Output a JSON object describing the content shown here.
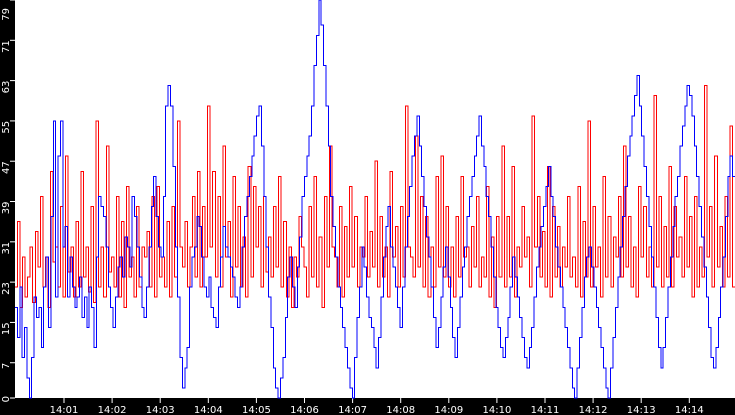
{
  "chart_data": {
    "type": "line",
    "title": "",
    "xlabel": "",
    "ylabel": "",
    "ylim": [
      0,
      79
    ],
    "xlim": [
      "14:00",
      "14:15"
    ],
    "grid": false,
    "legend": null,
    "background": "#ffffff",
    "frame_color": "#000000",
    "y_ticks": [
      0,
      7,
      15,
      23,
      31,
      39,
      47,
      55,
      63,
      71,
      79
    ],
    "x_ticks": [
      "14:01",
      "14:02",
      "14:03",
      "14:04",
      "14:05",
      "14:06",
      "14:07",
      "14:08",
      "14:09",
      "14:10",
      "14:11",
      "14:12",
      "14:13",
      "14:14"
    ],
    "series": [
      {
        "name": "red",
        "color": "#ff0000",
        "values": [
          22,
          35,
          18,
          28,
          20,
          24,
          30,
          19,
          33,
          26,
          40,
          22,
          28,
          18,
          45,
          27,
          30,
          22,
          38,
          20,
          48,
          25,
          30,
          20,
          35,
          22,
          45,
          24,
          30,
          21,
          38,
          19,
          55,
          22,
          30,
          20,
          50,
          25,
          28,
          22,
          40,
          20,
          35,
          18,
          42,
          24,
          28,
          20,
          38,
          22,
          30,
          28,
          33,
          22,
          40,
          20,
          42,
          24,
          28,
          22,
          35,
          20,
          38,
          24,
          55,
          30,
          26,
          35,
          22,
          30,
          40,
          24,
          45,
          22,
          38,
          28,
          58,
          30,
          45,
          24,
          40,
          22,
          50,
          28,
          35,
          20,
          44,
          26,
          38,
          22,
          32,
          20,
          46,
          24,
          42,
          30,
          38,
          22,
          40,
          25,
          32,
          24,
          38,
          26,
          44,
          22,
          35,
          20,
          30,
          18,
          28,
          24,
          36,
          30,
          26,
          20,
          38,
          24,
          44,
          22,
          32,
          18,
          40,
          26,
          50,
          30,
          28,
          22,
          38,
          20,
          34,
          24,
          42,
          26,
          36,
          22,
          30,
          28,
          40,
          24,
          33,
          26,
          47,
          22,
          36,
          24,
          30,
          20,
          45,
          28,
          34,
          22,
          38,
          24,
          58,
          30,
          28,
          24,
          52,
          26,
          40,
          22,
          36,
          20,
          30,
          22,
          44,
          26,
          48,
          24,
          38,
          22,
          30,
          20,
          36,
          24,
          44,
          28,
          30,
          22,
          34,
          26,
          40,
          22,
          28,
          24,
          42,
          20,
          32,
          18,
          36,
          24,
          50,
          22,
          36,
          24,
          46,
          20,
          30,
          26,
          38,
          28,
          32,
          22,
          56,
          30,
          40,
          24,
          33,
          22,
          46,
          20,
          38,
          24,
          34,
          22,
          30,
          26,
          40,
          24,
          28,
          22,
          42,
          20,
          35,
          24,
          55,
          22,
          38,
          26,
          30,
          20,
          44,
          24,
          36,
          22,
          32,
          28,
          40,
          24,
          50,
          26,
          36,
          22,
          30,
          20,
          42,
          28,
          38,
          24,
          30,
          22,
          60,
          26,
          40,
          22,
          34,
          24,
          46,
          22,
          38,
          28,
          32,
          24,
          44,
          26,
          36,
          20,
          40,
          22,
          30,
          24,
          62,
          28,
          38,
          22,
          48,
          26,
          34,
          22,
          40,
          24,
          54,
          22
        ],
        "approx_range": [
          7,
          67
        ]
      },
      {
        "name": "blue",
        "color": "#0000ff",
        "values": [
          18,
          12,
          22,
          8,
          14,
          4,
          0,
          8,
          20,
          16,
          18,
          10,
          22,
          28,
          14,
          36,
          55,
          20,
          48,
          55,
          30,
          34,
          20,
          28,
          22,
          18,
          20,
          24,
          16,
          20,
          14,
          22,
          18,
          10,
          28,
          40,
          38,
          36,
          30,
          22,
          18,
          14,
          20,
          26,
          28,
          24,
          32,
          30,
          26,
          40,
          36,
          30,
          24,
          18,
          16,
          22,
          30,
          38,
          44,
          36,
          30,
          28,
          40,
          58,
          62,
          58,
          46,
          30,
          20,
          8,
          2,
          6,
          10,
          22,
          28,
          30,
          36,
          34,
          28,
          22,
          20,
          24,
          18,
          16,
          14,
          22,
          28,
          34,
          30,
          28,
          26,
          24,
          20,
          18,
          22,
          30,
          36,
          40,
          44,
          48,
          52,
          56,
          58,
          50,
          40,
          30,
          20,
          14,
          6,
          2,
          0,
          4,
          8,
          16,
          24,
          28,
          22,
          18,
          26,
          32,
          40,
          44,
          48,
          52,
          58,
          66,
          72,
          79,
          74,
          66,
          58,
          50,
          40,
          34,
          28,
          22,
          18,
          14,
          10,
          6,
          2,
          0,
          8,
          16,
          22,
          30,
          26,
          20,
          16,
          14,
          10,
          6,
          12,
          20,
          28,
          34,
          38,
          30,
          26,
          22,
          18,
          14,
          22,
          30,
          36,
          42,
          48,
          52,
          56,
          50,
          44,
          38,
          32,
          28,
          22,
          16,
          10,
          14,
          20,
          26,
          30,
          24,
          18,
          12,
          8,
          14,
          20,
          26,
          30,
          36,
          40,
          44,
          48,
          52,
          56,
          50,
          46,
          40,
          36,
          30,
          24,
          18,
          14,
          10,
          8,
          12,
          16,
          22,
          28,
          24,
          20,
          16,
          12,
          8,
          6,
          10,
          14,
          20,
          26,
          30,
          34,
          38,
          42,
          46,
          40,
          36,
          30,
          26,
          22,
          18,
          14,
          10,
          6,
          2,
          0,
          6,
          12,
          18,
          24,
          28,
          30,
          26,
          22,
          18,
          14,
          10,
          6,
          2,
          0,
          6,
          12,
          18,
          24,
          30,
          36,
          42,
          48,
          52,
          56,
          60,
          64,
          58,
          52,
          46,
          40,
          34,
          28,
          22,
          16,
          10,
          6,
          10,
          16,
          22,
          28,
          34,
          40,
          44,
          50,
          54,
          58,
          62,
          60,
          56,
          50,
          44,
          38,
          32,
          26,
          20,
          14,
          8,
          6,
          10,
          16,
          22,
          28,
          36,
          44,
          48,
          44
        ],
        "approx_range": [
          0,
          79
        ]
      }
    ]
  },
  "axes": {
    "y_labels": [
      "0",
      "7",
      "15",
      "23",
      "31",
      "39",
      "47",
      "55",
      "63",
      "71",
      "79"
    ],
    "x_labels": [
      "14:01",
      "14:02",
      "14:03",
      "14:04",
      "14:05",
      "14:06",
      "14:07",
      "14:08",
      "14:09",
      "14:10",
      "14:11",
      "14:12",
      "14:13",
      "14:14"
    ]
  }
}
